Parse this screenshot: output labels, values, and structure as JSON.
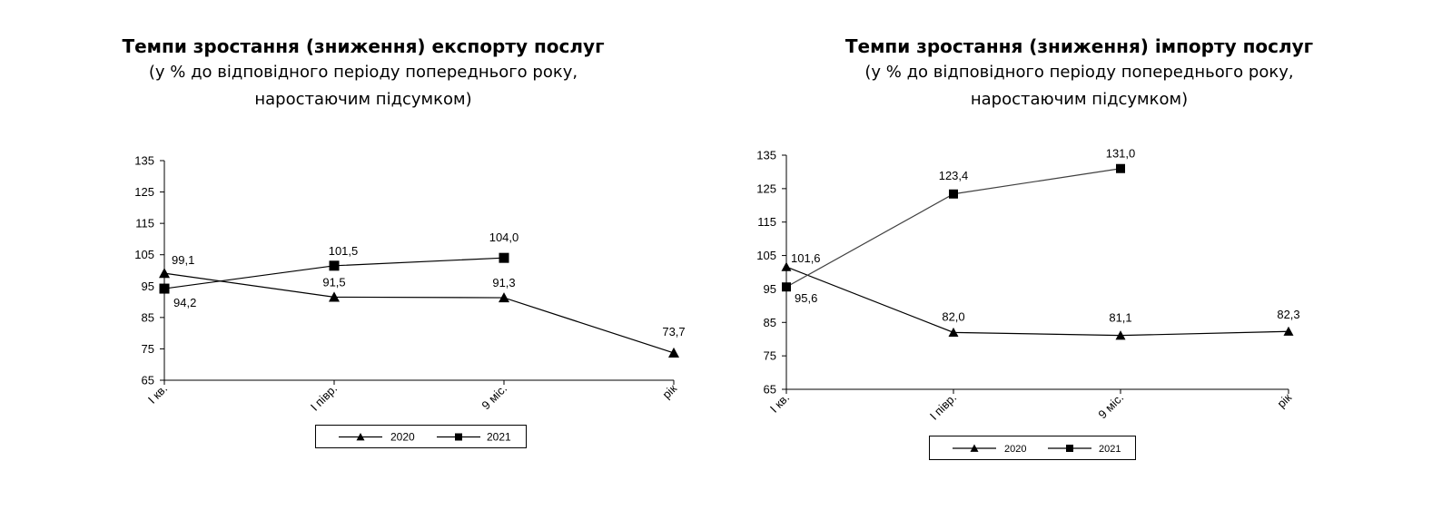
{
  "chart_data": [
    {
      "type": "line",
      "title": "Темпи зростання (зниження) експорту послуг",
      "subtitle_lines": [
        "(у % до відповідного періоду попереднього року,",
        "наростаючим підсумком)"
      ],
      "categories": [
        "І кв.",
        "І півр.",
        "9 міс.",
        "рік"
      ],
      "y_ticks": [
        "135",
        "125",
        "115",
        "105",
        "95",
        "85",
        "75",
        "65"
      ],
      "ylim": [
        65,
        135
      ],
      "grid": false,
      "legend_position": "bottom",
      "series": [
        {
          "name": "2020",
          "marker": "triangle",
          "values": [
            99.1,
            91.5,
            91.3,
            73.7
          ],
          "labels": [
            "99,1",
            "91,5",
            "91,3",
            "73,7"
          ]
        },
        {
          "name": "2021",
          "marker": "square",
          "values": [
            94.2,
            101.5,
            104.0,
            null
          ],
          "labels": [
            "94,2",
            "101,5",
            "104,0",
            ""
          ]
        }
      ]
    },
    {
      "type": "line",
      "title": "Темпи зростання (зниження) імпорту послуг",
      "subtitle_lines": [
        "(у % до відповідного періоду попереднього року,",
        "наростаючим підсумком)"
      ],
      "categories": [
        "І кв.",
        "І півр.",
        "9 міс.",
        "рік"
      ],
      "y_ticks": [
        "135",
        "125",
        "115",
        "105",
        "95",
        "85",
        "75",
        "65"
      ],
      "ylim": [
        65,
        135
      ],
      "grid": false,
      "legend_position": "bottom",
      "series": [
        {
          "name": "2020",
          "marker": "triangle",
          "values": [
            101.6,
            82.0,
            81.1,
            82.3
          ],
          "labels": [
            "101,6",
            "82,0",
            "81,1",
            "82,3"
          ]
        },
        {
          "name": "2021",
          "marker": "square",
          "values": [
            95.6,
            123.4,
            131.0,
            null
          ],
          "labels": [
            "95,6",
            "123,4",
            "131,0",
            ""
          ]
        }
      ]
    }
  ],
  "colors": {
    "line": "#000000",
    "line_2021_import": "#404040"
  }
}
